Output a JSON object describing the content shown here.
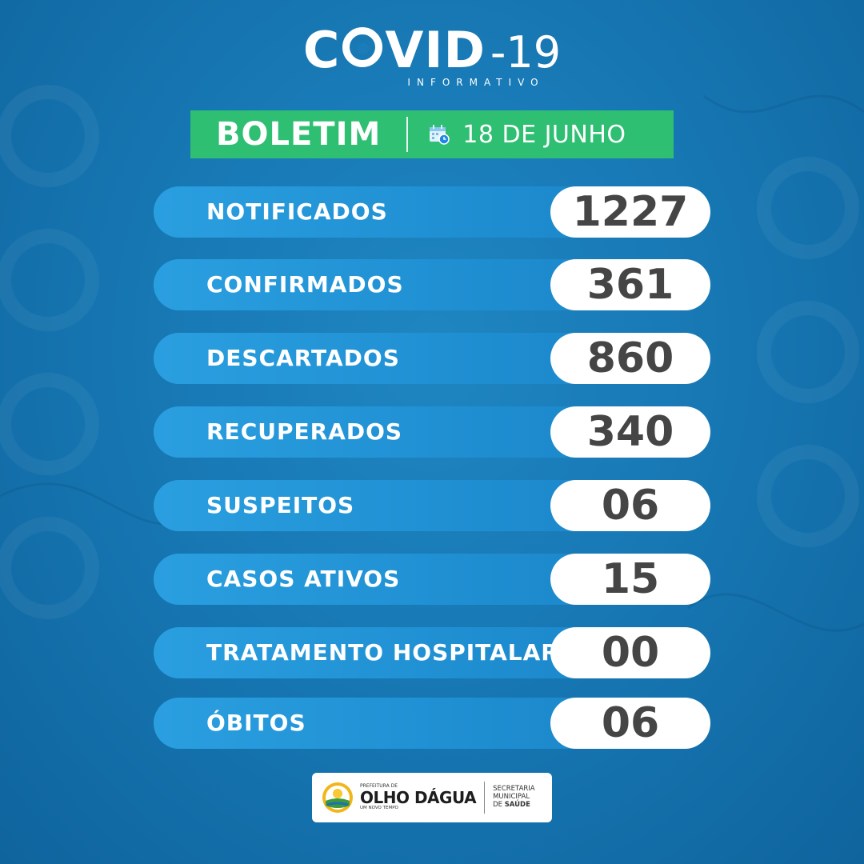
{
  "header": {
    "title_covid": "COVID",
    "title_number": "-19",
    "subtitle": "INFORMATIVO"
  },
  "boletim": {
    "label": "BOLETIM",
    "date": "18 DE JUNHO",
    "icon": "calendar-clock-icon",
    "color": "#2fbf72"
  },
  "stats": [
    {
      "label": "NOTIFICADOS",
      "value": "1227"
    },
    {
      "label": "CONFIRMADOS",
      "value": "361"
    },
    {
      "label": "DESCARTADOS",
      "value": "860"
    },
    {
      "label": "RECUPERADOS",
      "value": "340"
    },
    {
      "label": "SUSPEITOS",
      "value": "06"
    },
    {
      "label": "CASOS ATIVOS",
      "value": "15"
    },
    {
      "label": "TRATAMENTO HOSPITALAR",
      "value": "00"
    },
    {
      "label": "ÓBITOS",
      "value": "06"
    }
  ],
  "footer": {
    "prefeitura": "PREFEITURA DE",
    "city": "OLHO DÁGUA",
    "slogan": "UM NOVO TEMPO",
    "secretaria_line1": "SECRETARIA",
    "secretaria_line2": "MUNICIPAL",
    "secretaria_line3_prefix": "DE ",
    "secretaria_line3_bold": "SAÚDE"
  },
  "colors": {
    "background": "#1778b4",
    "row_bar": "#1f8fd2",
    "value_text": "#454545"
  }
}
